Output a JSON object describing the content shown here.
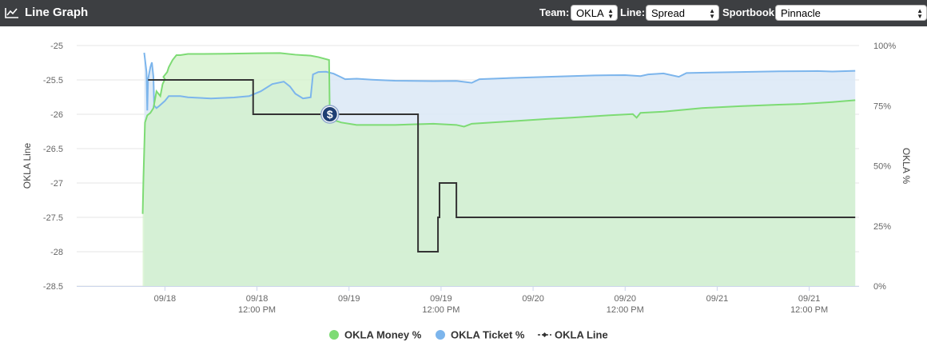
{
  "header": {
    "title": "Line Graph",
    "title_icon": "line-chart-icon",
    "team_label": "Team:",
    "team_value": "OKLA",
    "line_label": "Line:",
    "line_value": "Spread",
    "sportbook_label": "Sportbook:",
    "sportbook_value": "Pinnacle"
  },
  "colors": {
    "header_bg": "#3d3f42",
    "money": "#7ddb74",
    "money_fill": "#d2f1c9",
    "ticket": "#7cb5ec",
    "ticket_fill": "#dbe8f6",
    "overlap_fill": "#c5e8dc",
    "line": "#333333"
  },
  "chart_data": {
    "type": "line",
    "title": "",
    "y_left_label": "OKLA Line",
    "y_right_label": "OKLA %",
    "y_left_ticks": [
      "-25",
      "-25.5",
      "-26",
      "-26.5",
      "-27",
      "-27.5",
      "-28",
      "-28.5"
    ],
    "y_left_range": [
      -28.5,
      -25
    ],
    "y_right_ticks": [
      "100%",
      "75%",
      "50%",
      "25%",
      "0%"
    ],
    "y_right_range": [
      0,
      100
    ],
    "x_range_hours": [
      -11.5,
      90.5
    ],
    "x_ticks": [
      {
        "hour": 0,
        "line1": "09/18",
        "line2": ""
      },
      {
        "hour": 12,
        "line1": "09/18",
        "line2": "12:00 PM"
      },
      {
        "hour": 24,
        "line1": "09/19",
        "line2": ""
      },
      {
        "hour": 36,
        "line1": "09/19",
        "line2": "12:00 PM"
      },
      {
        "hour": 48,
        "line1": "09/20",
        "line2": ""
      },
      {
        "hour": 60,
        "line1": "09/20",
        "line2": "12:00 PM"
      },
      {
        "hour": 72,
        "line1": "09/21",
        "line2": ""
      },
      {
        "hour": 84,
        "line1": "09/21",
        "line2": "12:00 PM"
      }
    ],
    "grid": true,
    "legend_position": "bottom",
    "series": [
      {
        "name": "OKLA Money %",
        "axis": "right",
        "points": [
          [
            -2.9,
            30
          ],
          [
            -2.8,
            45
          ],
          [
            -2.6,
            68
          ],
          [
            -2.3,
            71
          ],
          [
            -1.9,
            72
          ],
          [
            -1.5,
            74
          ],
          [
            -1.1,
            81
          ],
          [
            -0.6,
            79
          ],
          [
            -0.3,
            84
          ],
          [
            0,
            86
          ],
          [
            -0.2,
            87
          ],
          [
            0.3,
            89
          ],
          [
            0.5,
            91
          ],
          [
            1,
            94
          ],
          [
            1.5,
            96
          ],
          [
            2,
            96
          ],
          [
            3,
            96.5
          ],
          [
            5,
            96.5
          ],
          [
            8,
            96.6
          ],
          [
            12,
            96.8
          ],
          [
            15,
            96.9
          ],
          [
            17,
            96.2
          ],
          [
            19,
            95.8
          ],
          [
            20,
            95.2
          ],
          [
            21.4,
            94
          ],
          [
            21.5,
            69.5
          ],
          [
            23,
            68
          ],
          [
            25,
            67
          ],
          [
            30,
            67
          ],
          [
            35,
            67.5
          ],
          [
            38,
            67
          ],
          [
            39,
            66.3
          ],
          [
            40,
            67.5
          ],
          [
            45,
            68.5
          ],
          [
            50,
            69.5
          ],
          [
            53,
            70
          ],
          [
            58,
            71
          ],
          [
            61,
            71.5
          ],
          [
            61.5,
            70
          ],
          [
            62,
            72
          ],
          [
            65,
            72.5
          ],
          [
            70,
            74
          ],
          [
            75,
            74.8
          ],
          [
            80,
            75.4
          ],
          [
            83,
            75.7
          ],
          [
            87,
            76.5
          ],
          [
            90,
            77.3
          ]
        ]
      },
      {
        "name": "OKLA Ticket %",
        "axis": "right",
        "points": [
          [
            -2.7,
            97
          ],
          [
            -2.4,
            89
          ],
          [
            -2.3,
            73
          ],
          [
            -2.2,
            86
          ],
          [
            -1.9,
            91
          ],
          [
            -1.7,
            93
          ],
          [
            -1.5,
            87
          ],
          [
            -1.4,
            75
          ],
          [
            -1.1,
            74
          ],
          [
            -0.7,
            75
          ],
          [
            0,
            77
          ],
          [
            0.5,
            79
          ],
          [
            1,
            79
          ],
          [
            2,
            79
          ],
          [
            3,
            78.5
          ],
          [
            6,
            78
          ],
          [
            9,
            78.4
          ],
          [
            11,
            79
          ],
          [
            12.5,
            81
          ],
          [
            14,
            84
          ],
          [
            15.5,
            85
          ],
          [
            16.3,
            83
          ],
          [
            17,
            80
          ],
          [
            18,
            78
          ],
          [
            19,
            78.5
          ],
          [
            19.3,
            88
          ],
          [
            20,
            89
          ],
          [
            21,
            89.1
          ],
          [
            22,
            88.3
          ],
          [
            23,
            86.8
          ],
          [
            23.5,
            86
          ],
          [
            25,
            86.2
          ],
          [
            27,
            85.8
          ],
          [
            30,
            85.4
          ],
          [
            35,
            85.2
          ],
          [
            38,
            85.3
          ],
          [
            40,
            84.5
          ],
          [
            41,
            86
          ],
          [
            45,
            86.5
          ],
          [
            50,
            87
          ],
          [
            56,
            87.6
          ],
          [
            60,
            87.7
          ],
          [
            62,
            87.3
          ],
          [
            63,
            88
          ],
          [
            65,
            88.4
          ],
          [
            67,
            87
          ],
          [
            68,
            88.6
          ],
          [
            75,
            89
          ],
          [
            80,
            89.3
          ],
          [
            85,
            89.4
          ],
          [
            87,
            89.2
          ],
          [
            90,
            89.5
          ]
        ]
      },
      {
        "name": "OKLA Line",
        "axis": "left",
        "points": [
          [
            -2.2,
            -25.5
          ],
          [
            -1.5,
            -25.5
          ],
          [
            5,
            -25.5
          ],
          [
            11.5,
            -25.5
          ],
          [
            11.5,
            -26
          ],
          [
            14,
            -26
          ],
          [
            20,
            -26
          ],
          [
            21.5,
            -26
          ],
          [
            27,
            -26
          ],
          [
            30,
            -26
          ],
          [
            33,
            -26
          ],
          [
            33,
            -28
          ],
          [
            35.6,
            -28
          ],
          [
            35.6,
            -27.5
          ],
          [
            35.8,
            -27.5
          ],
          [
            35.8,
            -27
          ],
          [
            38,
            -27
          ],
          [
            38,
            -27.5
          ],
          [
            45,
            -27.5
          ],
          [
            60,
            -27.5
          ],
          [
            75,
            -27.5
          ],
          [
            90,
            -27.5
          ]
        ]
      }
    ],
    "marker": {
      "label": "$",
      "hour": 21.5,
      "value": -26
    }
  },
  "legend": [
    {
      "label": "OKLA Money %",
      "icon": "circle-icon"
    },
    {
      "label": "OKLA Ticket %",
      "icon": "circle-icon"
    },
    {
      "label": "OKLA Line",
      "icon": "line-marker-icon"
    }
  ]
}
